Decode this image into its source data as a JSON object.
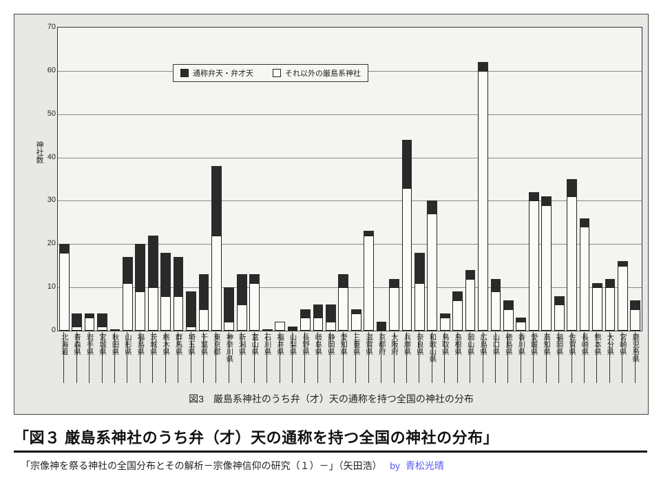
{
  "chart": {
    "type": "bar",
    "stacked": true,
    "ylabel": "神社数",
    "ylim": [
      0,
      70
    ],
    "ytick_step": 10,
    "background_color": "#e8e8e4",
    "plot_bg": "#f4f4f0",
    "grid_color": "#888888",
    "series": [
      {
        "name": "通称弁天・弁才天",
        "color": "#2a2a2a"
      },
      {
        "name": "それ以外の厳島系神社",
        "color": "#fbfbf8"
      }
    ],
    "legend_position": "top",
    "caption": "図3　厳島系神社のうち弁（才）天の通称を持つ全国の神社の分布",
    "categories": [
      "北海道",
      "青森県",
      "岩手県",
      "宮城県",
      "秋田県",
      "山形県",
      "福島県",
      "茨城県",
      "栃木県",
      "群馬県",
      "埼玉県",
      "千葉県",
      "東京都",
      "神奈川県",
      "新潟県",
      "富山県",
      "石川県",
      "福井県",
      "山梨県",
      "長野県",
      "岐阜県",
      "静岡県",
      "愛知県",
      "三重県",
      "滋賀県",
      "京都府",
      "大阪府",
      "兵庫県",
      "奈良県",
      "和歌山県",
      "鳥取県",
      "島根県",
      "岡山県",
      "広島県",
      "山口県",
      "徳島県",
      "香川県",
      "愛媛県",
      "高知県",
      "福岡県",
      "佐賀県",
      "長崎県",
      "熊本県",
      "大分県",
      "宮崎県",
      "鹿児島県"
    ],
    "black_values": [
      2,
      3,
      1,
      3,
      0,
      6,
      11,
      12,
      10,
      9,
      8,
      8,
      16,
      8,
      7,
      2,
      0,
      0,
      1,
      2,
      3,
      4,
      3,
      1,
      1,
      2,
      2,
      11,
      7,
      3,
      1,
      2,
      2,
      2,
      3,
      2,
      1,
      2,
      2,
      2,
      4,
      2,
      1,
      2,
      1,
      2
    ],
    "white_values": [
      18,
      1,
      3,
      1,
      0,
      11,
      9,
      10,
      8,
      8,
      1,
      5,
      22,
      2,
      6,
      11,
      0,
      2,
      0,
      3,
      3,
      2,
      10,
      4,
      22,
      0,
      10,
      33,
      11,
      27,
      3,
      7,
      12,
      60,
      9,
      5,
      2,
      30,
      29,
      6,
      31,
      24,
      10,
      10,
      15,
      5
    ]
  },
  "title": "「図３  厳島系神社のうち弁（才）天の通称を持つ全国の神社の分布」",
  "source": {
    "text": "「宗像神を祭る神社の全国分布とその解析－宗像神信仰の研究（１）－」（矢田浩）",
    "by_label": "by",
    "author": "青松光晴"
  }
}
